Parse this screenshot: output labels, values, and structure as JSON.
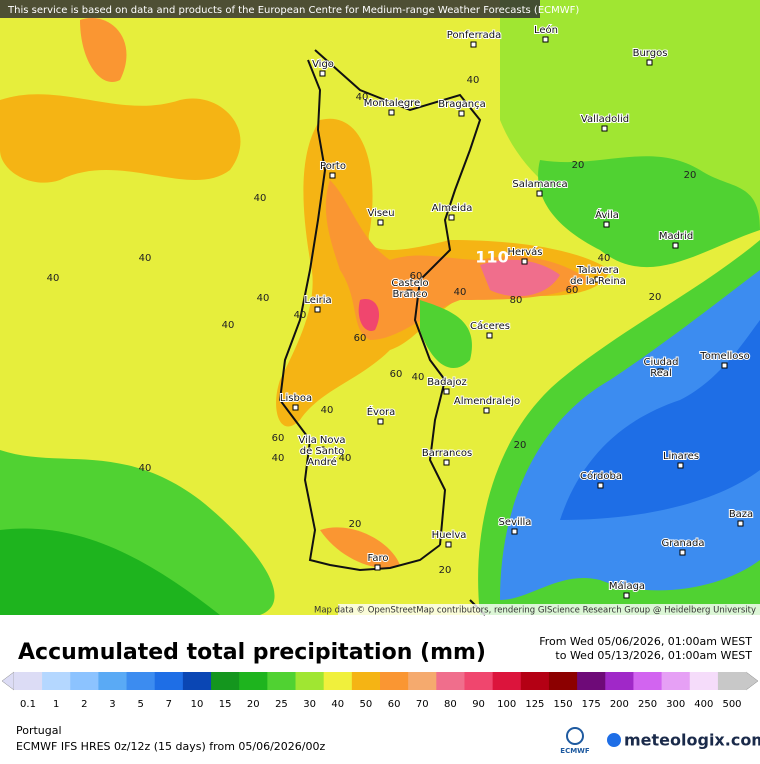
{
  "header": {
    "notice": "This service is based on data and products of the European Centre for Medium-range Weather Forecasts (ECMWF)"
  },
  "map": {
    "cities": [
      {
        "lines": [
          "Ponferrada"
        ]
      },
      {
        "lines": [
          "León"
        ]
      },
      {
        "lines": [
          "Vigo"
        ]
      },
      {
        "lines": [
          "Montalegre"
        ]
      },
      {
        "lines": [
          "Bragança"
        ]
      },
      {
        "lines": [
          "Burgos"
        ]
      },
      {
        "lines": [
          "Valladolid"
        ]
      },
      {
        "lines": [
          "Porto"
        ]
      },
      {
        "lines": [
          "Salamanca"
        ]
      },
      {
        "lines": [
          "Almeida"
        ]
      },
      {
        "lines": [
          "Viseu"
        ]
      },
      {
        "lines": [
          "Ávila"
        ]
      },
      {
        "lines": [
          "Madrid"
        ]
      },
      {
        "lines": [
          "Hervás"
        ]
      },
      {
        "lines": [
          "Talavera",
          "de la Reina"
        ]
      },
      {
        "lines": [
          "Castelo",
          "Branco"
        ]
      },
      {
        "lines": [
          "Leiria"
        ]
      },
      {
        "lines": [
          "Cáceres"
        ]
      },
      {
        "lines": [
          "Ciudad",
          "Real"
        ]
      },
      {
        "lines": [
          "Tomelloso"
        ]
      },
      {
        "lines": [
          "Badajoz"
        ]
      },
      {
        "lines": [
          "Almendralejo"
        ]
      },
      {
        "lines": [
          "Lisboa"
        ]
      },
      {
        "lines": [
          "Évora"
        ]
      },
      {
        "lines": [
          "Vila Nova",
          "de Santo",
          "André"
        ]
      },
      {
        "lines": [
          "Barrancos"
        ]
      },
      {
        "lines": [
          "Linares"
        ]
      },
      {
        "lines": [
          "Córdoba"
        ]
      },
      {
        "lines": [
          "Baza"
        ]
      },
      {
        "lines": [
          "Sevilla"
        ]
      },
      {
        "lines": [
          "Huelva"
        ]
      },
      {
        "lines": [
          "Granada"
        ]
      },
      {
        "lines": [
          "Faro"
        ]
      },
      {
        "lines": [
          "Málaga"
        ]
      }
    ],
    "contour_labels": [
      "40",
      "40",
      "20",
      "20",
      "40",
      "40",
      "40",
      "40",
      "40",
      "40",
      "110",
      "60",
      "40",
      "60",
      "60",
      "40",
      "80",
      "60",
      "40",
      "20",
      "40",
      "60",
      "40",
      "40",
      "40",
      "20",
      "20",
      "20"
    ],
    "attribution": "Map data © OpenStreetMap contributors, rendering GIScience Research Group @ Heidelberg University"
  },
  "legend": {
    "title": "Accumulated total precipitation (mm)",
    "from": "From Wed 05/06/2026, 01:00am WEST",
    "to": "to Wed 05/13/2026, 01:00am WEST",
    "levels": [
      0.1,
      1,
      2,
      3,
      5,
      7,
      10,
      15,
      20,
      25,
      30,
      40,
      50,
      60,
      70,
      80,
      90,
      100,
      125,
      150,
      175,
      200,
      250,
      300,
      400,
      500
    ],
    "colors": [
      "#dcdcf5",
      "#b4d7ff",
      "#8cc3ff",
      "#5aaaf5",
      "#3c8cf0",
      "#1e6ee6",
      "#0a46b4",
      "#14961e",
      "#1eb41e",
      "#50d232",
      "#a0e632",
      "#f0f03c",
      "#f5b414",
      "#fa9632",
      "#f5aa6e",
      "#f06e8c",
      "#f0466e",
      "#dc143c",
      "#b40014",
      "#8c0000",
      "#6e0a78",
      "#a028c8",
      "#d264f0",
      "#e6a0f5",
      "#f5dcfa",
      "#c8c8c8"
    ]
  },
  "footer": {
    "region": "Portugal",
    "model": "ECMWF IFS HRES 0z/12z (15 days) from 05/06/2026/00z",
    "agency": "ECMWF",
    "brand": "meteologix.com"
  }
}
